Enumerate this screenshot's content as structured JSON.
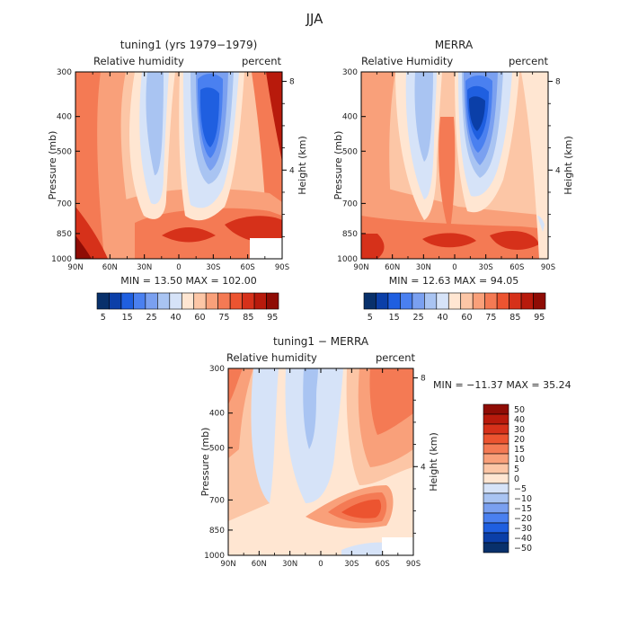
{
  "figure": {
    "title": "JJA"
  },
  "colors": {
    "full_field_palette": [
      "#08306b",
      "#0b3fa8",
      "#1f5fe0",
      "#4a80f0",
      "#7aa0f0",
      "#a9c4f2",
      "#d6e3f8",
      "#ffe6d2",
      "#fcc6a6",
      "#f9a07a",
      "#f47a54",
      "#ec5430",
      "#d6311a",
      "#b81a0c",
      "#8f0c05"
    ],
    "diff_palette": [
      "#08306b",
      "#0b3fa8",
      "#1f5fe0",
      "#4a80f0",
      "#7aa0f0",
      "#a9c4f2",
      "#d6e3f8",
      "#ffe6d2",
      "#fcc6a6",
      "#f9a07a",
      "#f47a54",
      "#ec5430",
      "#d6311a",
      "#b81a0c",
      "#8f0c05"
    ]
  },
  "chart_data": [
    {
      "type": "heatmap",
      "title": "tuning1 (yrs 1979−1979)",
      "subtitle_left": "Relative humidity",
      "subtitle_right": "percent",
      "ylabel": "Pressure (mb)",
      "ylabel_right": "Height (km)",
      "x_ticks": [
        "90N",
        "60N",
        "30N",
        "0",
        "30S",
        "60S",
        "90S"
      ],
      "y_ticks": [
        300,
        400,
        500,
        700,
        850,
        1000
      ],
      "right_ticks": [
        8,
        4
      ],
      "stats": "MIN =   13.50   MAX =  102.00",
      "colorbar_labels": [
        "5",
        "15",
        "25",
        "40",
        "60",
        "75",
        "85",
        "95"
      ]
    },
    {
      "type": "heatmap",
      "title": "MERRA",
      "subtitle_left": "Relative Humidity",
      "subtitle_right": "percent",
      "ylabel": "Pressure (mb)",
      "ylabel_right": "Height (km)",
      "x_ticks": [
        "90N",
        "60N",
        "30N",
        "0",
        "30S",
        "60S",
        "90S"
      ],
      "y_ticks": [
        300,
        400,
        500,
        700,
        850,
        1000
      ],
      "right_ticks": [
        8,
        4
      ],
      "stats": "MIN =   12.63   MAX =   94.05",
      "colorbar_labels": [
        "5",
        "15",
        "25",
        "40",
        "60",
        "75",
        "85",
        "95"
      ]
    },
    {
      "type": "heatmap",
      "title": "tuning1 − MERRA",
      "subtitle_left": "Relative humidity",
      "subtitle_right": "percent",
      "ylabel": "Pressure (mb)",
      "ylabel_right": "Height (km)",
      "x_ticks": [
        "90N",
        "60N",
        "30N",
        "0",
        "30S",
        "60S",
        "90S"
      ],
      "y_ticks": [
        300,
        400,
        500,
        700,
        850,
        1000
      ],
      "right_ticks": [
        8,
        4
      ],
      "stats": "MIN =  −11.37   MAX =   35.24",
      "colorbar_labels": [
        "50",
        "40",
        "30",
        "20",
        "15",
        "10",
        "5",
        "0",
        "−5",
        "−10",
        "−15",
        "−20",
        "−30",
        "−40",
        "−50"
      ]
    }
  ]
}
